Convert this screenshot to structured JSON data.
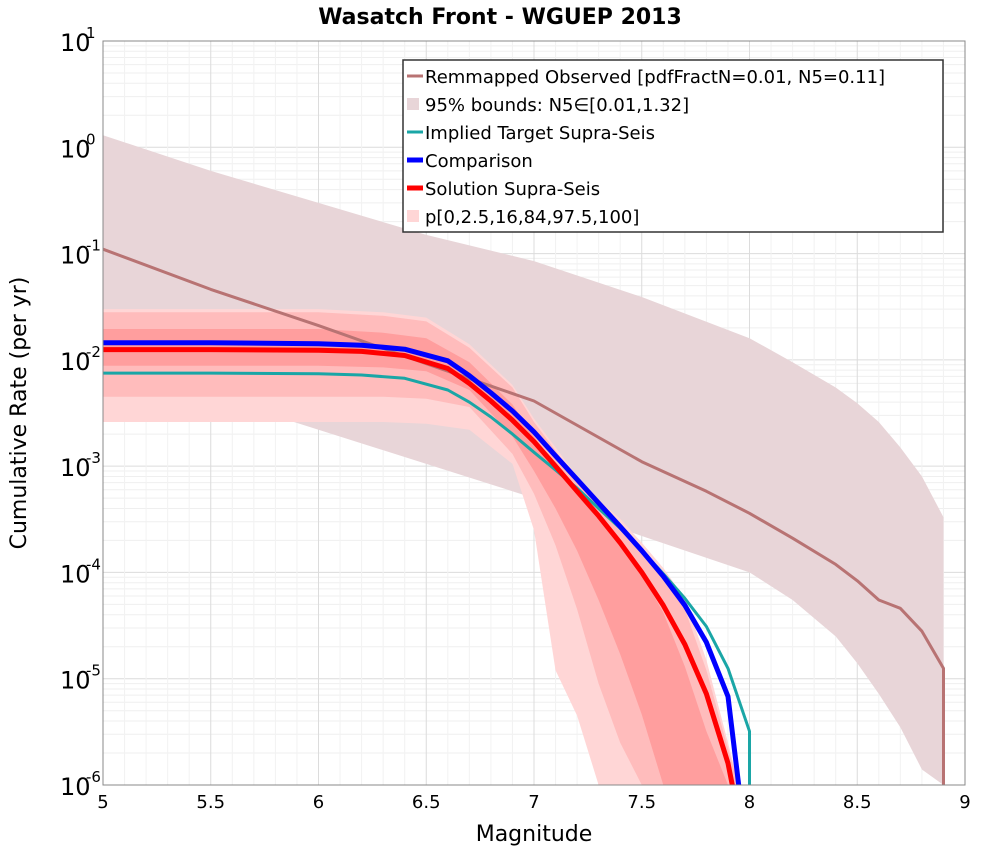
{
  "chart_data": {
    "type": "line",
    "title": "Wasatch Front - WGUEP 2013",
    "xlabel": "Magnitude",
    "ylabel": "Cumulative Rate (per yr)",
    "xlim": [
      5,
      9
    ],
    "ylim": [
      1e-06,
      10
    ],
    "yscale": "log",
    "grid": true,
    "legend_position": "top-right",
    "x_ticks": [
      "5",
      "5.5",
      "6",
      "6.5",
      "7",
      "7.5",
      "8",
      "8.5",
      "9"
    ],
    "y_ticks": [
      {
        "base": "10",
        "exp": "1"
      },
      {
        "base": "10",
        "exp": "0"
      },
      {
        "base": "10",
        "exp": "-1"
      },
      {
        "base": "10",
        "exp": "-2"
      },
      {
        "base": "10",
        "exp": "-3"
      },
      {
        "base": "10",
        "exp": "-4"
      },
      {
        "base": "10",
        "exp": "-5"
      },
      {
        "base": "10",
        "exp": "-6"
      }
    ],
    "legend": [
      {
        "label": "Remmapped Observed [pdfFractN=0.01, N5=0.11]",
        "kind": "line",
        "color": "#b87373",
        "width": 3
      },
      {
        "label": "95% bounds: N5∈[0.01,1.32]",
        "kind": "patch",
        "color": "#e8d5d8"
      },
      {
        "label": "Implied Target Supra-Seis",
        "kind": "line",
        "color": "#1aa6a6",
        "width": 3
      },
      {
        "label": "Comparison",
        "kind": "line",
        "color": "#0000ff",
        "width": 5
      },
      {
        "label": "Solution Supra-Seis",
        "kind": "line",
        "color": "#ff0000",
        "width": 5
      },
      {
        "label": "p[0,2.5,16,84,97.5,100]",
        "kind": "patch",
        "color": "#ffd6d6"
      }
    ],
    "bands": [
      {
        "name": "95% bounds: N5∈[0.01,1.32]",
        "color": "#e8d5d8",
        "x": [
          5.0,
          5.5,
          6.0,
          6.5,
          7.0,
          7.5,
          8.0,
          8.2,
          8.4,
          8.5,
          8.6,
          8.7,
          8.8,
          8.9
        ],
        "upper": [
          1.3,
          0.6,
          0.3,
          0.15,
          0.085,
          0.039,
          0.016,
          0.0095,
          0.0055,
          0.0039,
          0.0026,
          0.0015,
          0.0008,
          0.00033
        ],
        "lower": [
          0.0088,
          0.0046,
          0.0022,
          0.00105,
          0.0005,
          0.00022,
          0.0001,
          5.5e-05,
          2.5e-05,
          1.4e-05,
          7.2e-06,
          3.5e-06,
          1.4e-06,
          1e-06
        ]
      },
      {
        "name": "p0-p100",
        "color": "#ffd6d6",
        "x": [
          5.0,
          6.0,
          6.3,
          6.5,
          6.7,
          6.9,
          7.0,
          7.1,
          7.2,
          7.3,
          7.4,
          7.5,
          7.6,
          7.7,
          7.8,
          7.9,
          7.95
        ],
        "upper": [
          0.03,
          0.03,
          0.028,
          0.025,
          0.014,
          0.0058,
          0.0028,
          0.0015,
          0.0008,
          0.00048,
          0.00032,
          0.00019,
          0.00011,
          5.7e-05,
          1.5e-05,
          2.5e-06,
          1e-06
        ],
        "lower": [
          0.0026,
          0.0026,
          0.0026,
          0.0025,
          0.0022,
          0.00105,
          0.00025,
          1.2e-05,
          4.5e-06,
          1e-06,
          null,
          null,
          null,
          null,
          null,
          null,
          null
        ]
      },
      {
        "name": "p2.5-p97.5",
        "color": "#ffbcbc",
        "x": [
          5.0,
          6.0,
          6.3,
          6.5,
          6.7,
          6.9,
          7.0,
          7.1,
          7.2,
          7.3,
          7.4,
          7.5,
          7.6,
          7.7,
          7.8,
          7.9,
          7.95
        ],
        "upper": [
          0.028,
          0.028,
          0.026,
          0.023,
          0.013,
          0.0055,
          0.0026,
          0.0014,
          0.00075,
          0.00044,
          0.00029,
          0.00017,
          0.0001,
          4.5e-05,
          1.2e-05,
          2.2e-06,
          1e-06
        ],
        "lower": [
          0.0045,
          0.0045,
          0.0045,
          0.0043,
          0.0036,
          0.0013,
          0.00055,
          0.00018,
          4.5e-05,
          9e-06,
          2.5e-06,
          1e-06,
          null,
          null,
          null,
          null,
          null
        ]
      },
      {
        "name": "p16-p84",
        "color": "#ff9e9e",
        "x": [
          5.0,
          6.0,
          6.3,
          6.5,
          6.7,
          6.9,
          7.0,
          7.1,
          7.2,
          7.3,
          7.4,
          7.5,
          7.6,
          7.7,
          7.8,
          7.9
        ],
        "upper": [
          0.0195,
          0.0195,
          0.018,
          0.016,
          0.0095,
          0.0038,
          0.0019,
          0.001,
          0.00055,
          0.00031,
          0.00018,
          9.5e-05,
          4.2e-05,
          1.3e-05,
          3.2e-06,
          1e-06
        ],
        "lower": [
          0.0088,
          0.0088,
          0.0085,
          0.0078,
          0.0052,
          0.0019,
          0.0009,
          0.0004,
          0.00016,
          5.5e-05,
          1.7e-05,
          4.6e-06,
          1e-06,
          null,
          null,
          null
        ]
      }
    ],
    "series": [
      {
        "name": "Remmapped Observed [pdfFractN=0.01, N5=0.11]",
        "color": "#b87373",
        "width": 3,
        "x": [
          5.0,
          5.5,
          6.0,
          6.5,
          7.0,
          7.5,
          7.8,
          8.0,
          8.2,
          8.4,
          8.5,
          8.6,
          8.7,
          8.8,
          8.9,
          8.9
        ],
        "y": [
          0.11,
          0.046,
          0.021,
          0.0092,
          0.0041,
          0.0011,
          0.00058,
          0.00036,
          0.00021,
          0.000119,
          8.35e-05,
          5.5e-05,
          4.6e-05,
          2.8e-05,
          1.25e-05,
          1e-06
        ]
      },
      {
        "name": "Implied Target Supra-Seis",
        "color": "#1aa6a6",
        "width": 3,
        "x": [
          5.0,
          5.5,
          6.0,
          6.2,
          6.4,
          6.6,
          6.7,
          6.8,
          6.9,
          7.0,
          7.1,
          7.2,
          7.3,
          7.4,
          7.5,
          7.6,
          7.7,
          7.8,
          7.9,
          8.0,
          8.0
        ],
        "y": [
          0.0075,
          0.0075,
          0.0074,
          0.0072,
          0.0067,
          0.0052,
          0.004,
          0.0029,
          0.002,
          0.00135,
          0.00092,
          0.00062,
          0.0004,
          0.00026,
          0.00016,
          9.7e-05,
          5.7e-05,
          3.1e-05,
          1.25e-05,
          3.2e-06,
          1e-06
        ]
      },
      {
        "name": "Comparison",
        "color": "#0000ff",
        "width": 5,
        "x": [
          5.0,
          5.5,
          6.0,
          6.2,
          6.4,
          6.6,
          6.7,
          6.8,
          6.9,
          7.0,
          7.1,
          7.2,
          7.3,
          7.4,
          7.5,
          7.6,
          7.7,
          7.8,
          7.9,
          7.95
        ],
        "y": [
          0.0145,
          0.0145,
          0.0142,
          0.0137,
          0.0126,
          0.0098,
          0.0071,
          0.0049,
          0.0033,
          0.0021,
          0.00125,
          0.00075,
          0.00045,
          0.00027,
          0.00016,
          9.2e-05,
          4.9e-05,
          2.2e-05,
          6.8e-06,
          1e-06
        ]
      },
      {
        "name": "Solution Supra-Seis",
        "color": "#ff0000",
        "width": 5,
        "x": [
          5.0,
          5.5,
          6.0,
          6.2,
          6.4,
          6.6,
          6.7,
          6.8,
          6.9,
          7.0,
          7.1,
          7.2,
          7.3,
          7.4,
          7.5,
          7.6,
          7.7,
          7.8,
          7.9,
          7.92
        ],
        "y": [
          0.0125,
          0.0125,
          0.0123,
          0.012,
          0.011,
          0.0083,
          0.006,
          0.0041,
          0.0027,
          0.0017,
          0.001,
          0.00058,
          0.00034,
          0.00019,
          0.0001,
          4.9e-05,
          2.1e-05,
          7.2e-06,
          1.6e-06,
          1e-06
        ]
      }
    ]
  }
}
